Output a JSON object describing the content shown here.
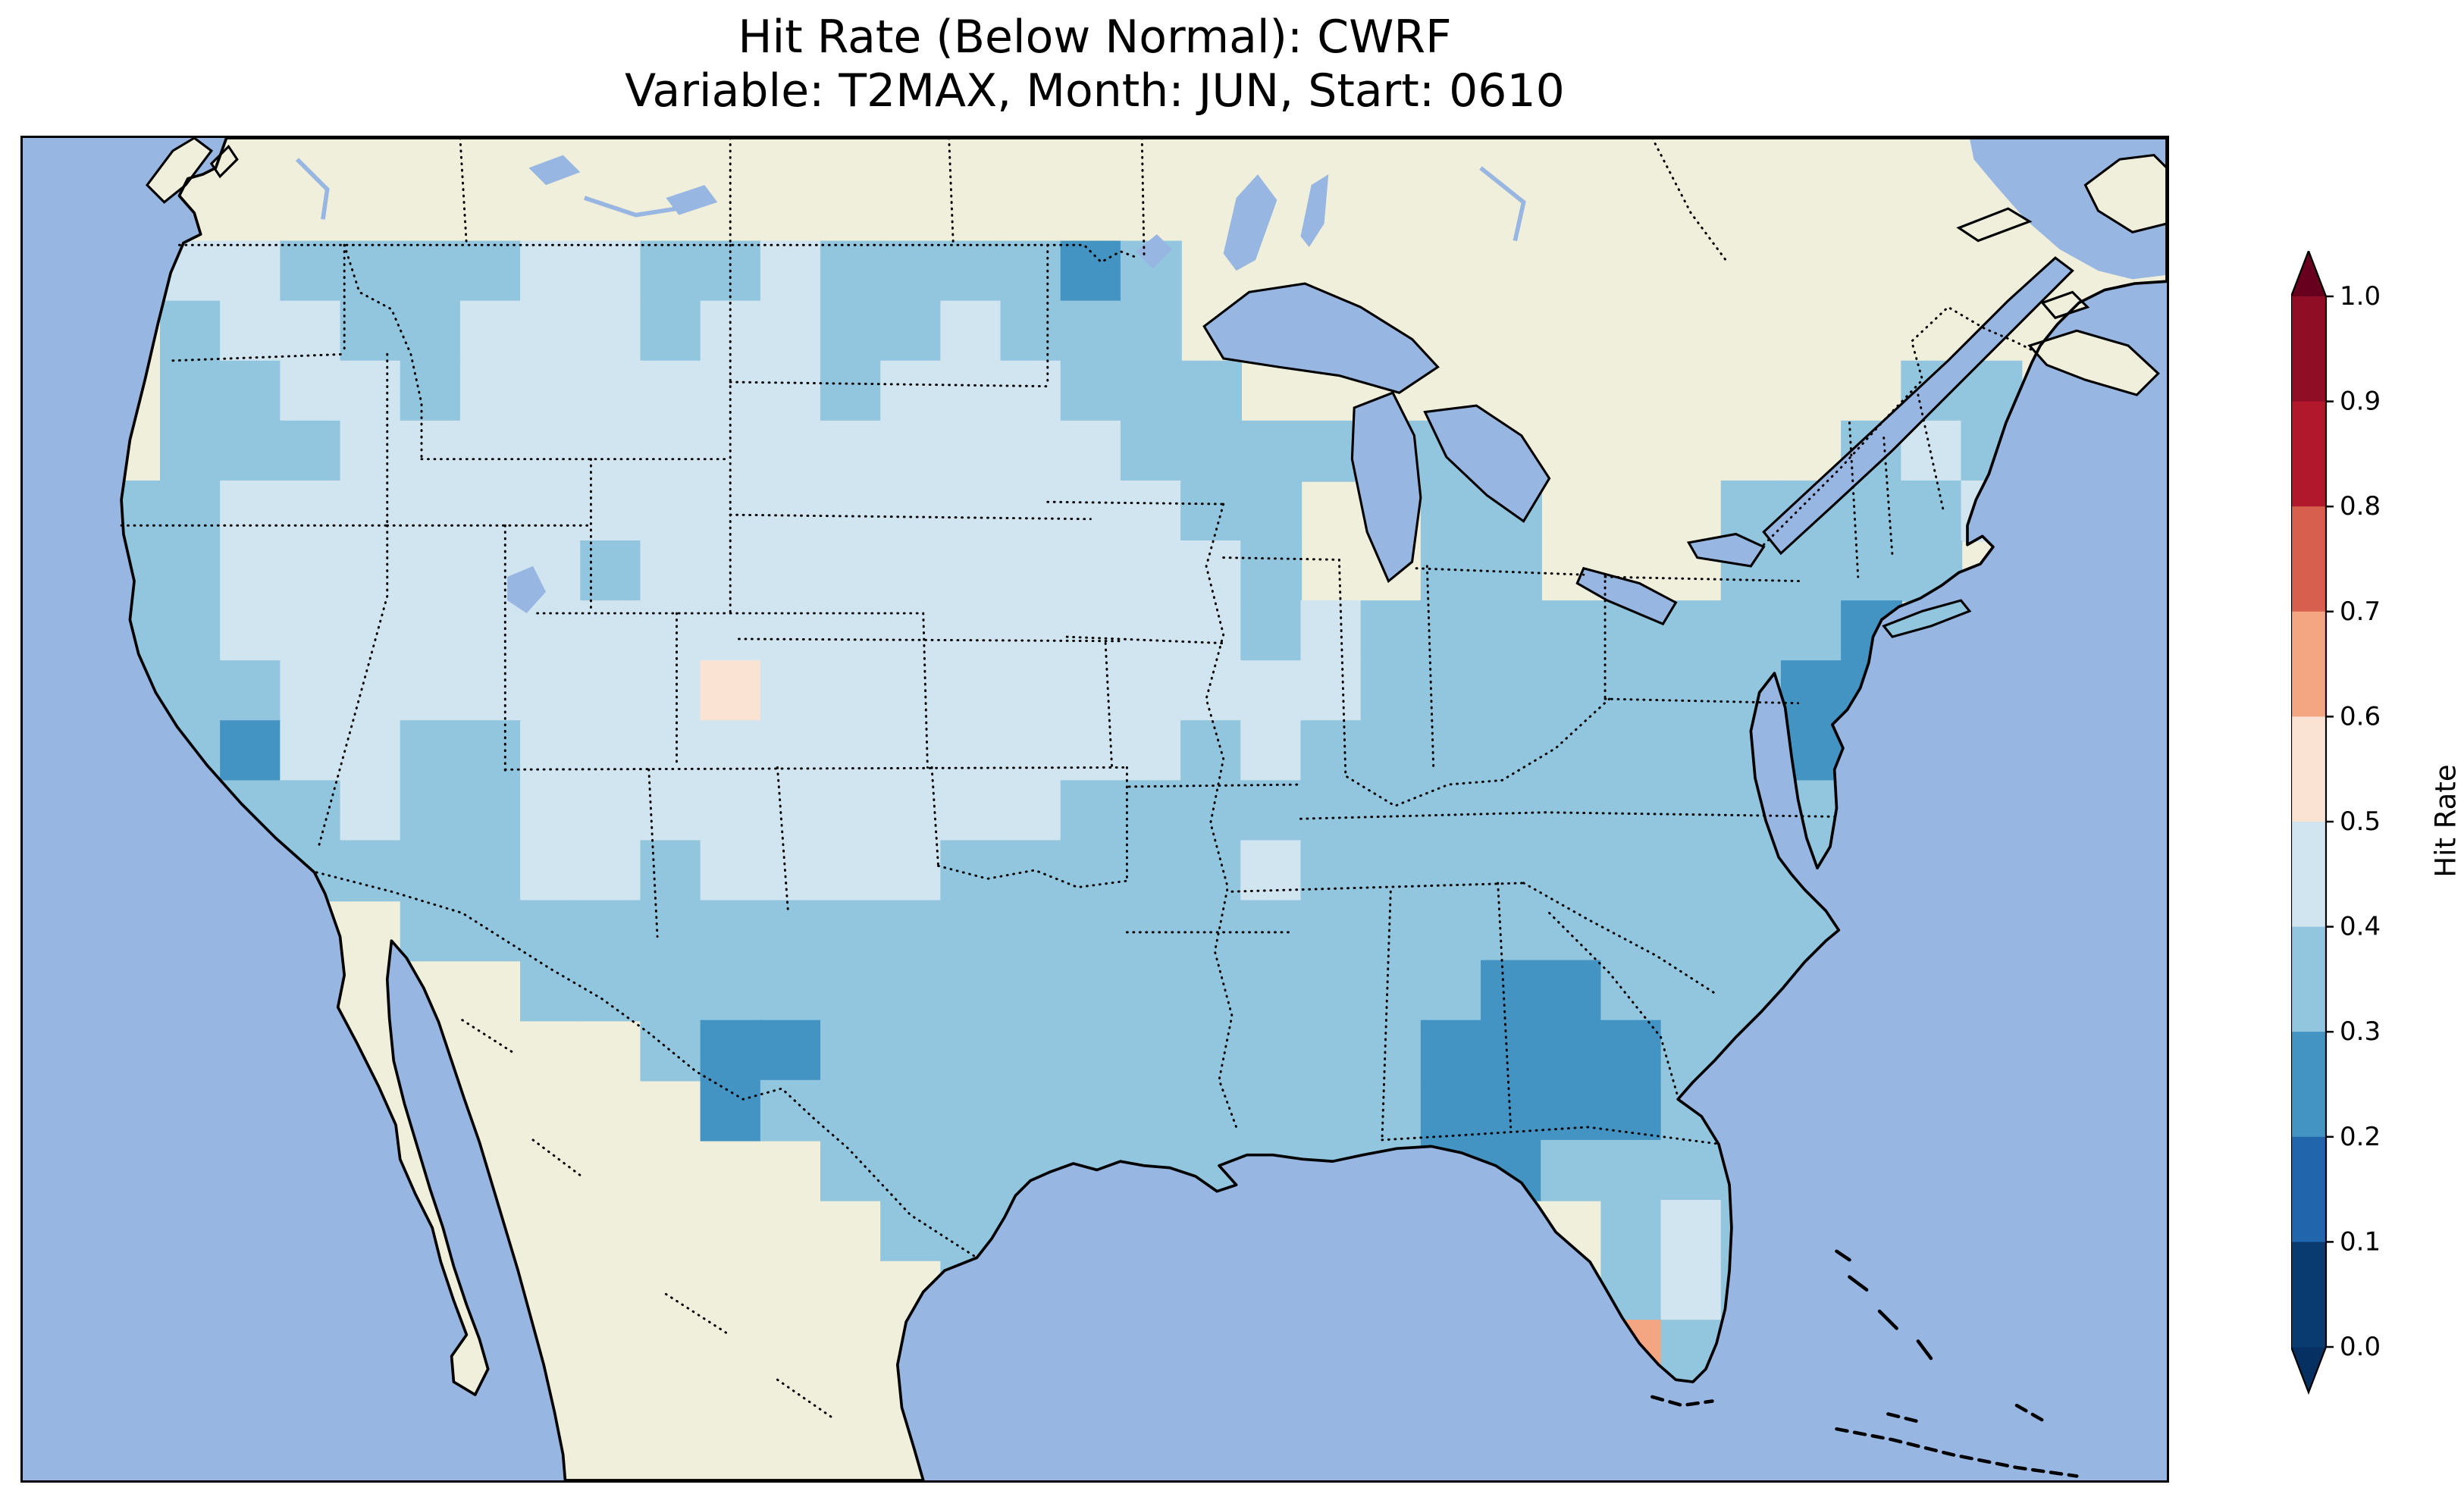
{
  "figure": {
    "title_line1": "Hit Rate (Below Normal): CWRF",
    "title_line2": "Variable: T2MAX, Month: JUN, Start: 0610"
  },
  "colorbar": {
    "label": "Hit Rate",
    "ticks": [
      "1.0",
      "0.9",
      "0.8",
      "0.7",
      "0.6",
      "0.5",
      "0.4",
      "0.3",
      "0.2",
      "0.1",
      "0.0"
    ],
    "bin_colors_top_to_bottom": [
      "#8f0e26",
      "#b2182b",
      "#d6604d",
      "#f4a582",
      "#fbe3d4",
      "#d1e5f0",
      "#92c5de",
      "#4393c3",
      "#2166ac",
      "#0a3b70"
    ],
    "over_color": "#67001f",
    "under_color": "#053061"
  },
  "map": {
    "ocean_color": "#98b6e2",
    "land_color": "#efefdb"
  },
  "chart_data": {
    "type": "heatmap",
    "title": "Hit Rate (Below Normal): CWRF",
    "subtitle": "Variable: T2MAX, Month: JUN, Start: 0610",
    "model": "CWRF",
    "variable": "T2MAX",
    "month": "JUN",
    "start": "0610",
    "metric": "Hit Rate (Below Normal)",
    "region": "Continental United States",
    "colorbar_label": "Hit Rate",
    "colorbar_ticks": [
      0.0,
      0.1,
      0.2,
      0.3,
      0.4,
      0.5,
      0.6,
      0.7,
      0.8,
      0.9,
      1.0
    ],
    "value_bins": {
      "a": [
        0.4,
        0.5
      ],
      "b": [
        0.3,
        0.4
      ],
      "c": [
        0.2,
        0.3
      ],
      "p": [
        0.5,
        0.6
      ],
      "o": [
        0.6,
        0.7
      ]
    },
    "bin_colors": {
      "a": "#d1e5f0",
      "b": "#92c5de",
      "c": "#4393c3",
      "p": "#fbe3d4",
      "o": "#f4a582"
    },
    "grid": {
      "description": "Hit-rate bins on a coarse lon-lat grid over CONUS; '.' = no data, letters keyed by value_bins.",
      "origin": [
        36,
        48
      ],
      "cell_size": 28,
      "rows_encoded": [
        ".aabbbbaabbabbbbcb..............",
        ".baabbaaabaabbabbb..............",
        ".bbaabaaaaaabaaabbb...........bb",
        ".bbbaaaaaaaaaaaaabbbbbb......bab",
        "bbaaaaaaaaaaaaaaaabb..bb...bbbba",
        "bbaaaaaabaaaaaaaaaab..bb...bbbb.",
        "bbaaaaaaaaaaaaaaaaababbbbbbbbc..",
        "bbbaaaaaaapaaaaaaaaaabbbbbbbcc..",
        ".bcaabbaaaaaaaaaaababbbbbbbbcc..",
        "..bbabbaaaaaaaaabbbbbbbbbbbbb...",
        "...bbbbaabaaaabbbbbabbbbbbbbb...",
        ".....bbbbbbbbbbbbbbbbbbbbbbbb...",
        ".......bbbbbbbbbbbbbbbbccbbbb...",
        ".........bccbbbbbbbbbbccccbb....",
        "..........cbbbbbbbbbbbccccb.....",
        "............bbbbbbbbbbccbbbb....",
        ".............bbb.........bab....",
        "..............bc.........bab....",
        "........................pobb...."
      ]
    },
    "notable_features": [
      "Most of CONUS in the 0.3-0.5 hit-rate range (light blues)",
      "0.2-0.3 patch over Alabama-Georgia",
      "0.2-0.3 cells along the New Jersey / Chesapeake coast",
      "0.2-0.3 spots in west Texas and on the south Texas coast",
      "Isolated 0.5-0.6 cell in Colorado",
      "0.5-0.7 cells just south of Florida"
    ]
  }
}
